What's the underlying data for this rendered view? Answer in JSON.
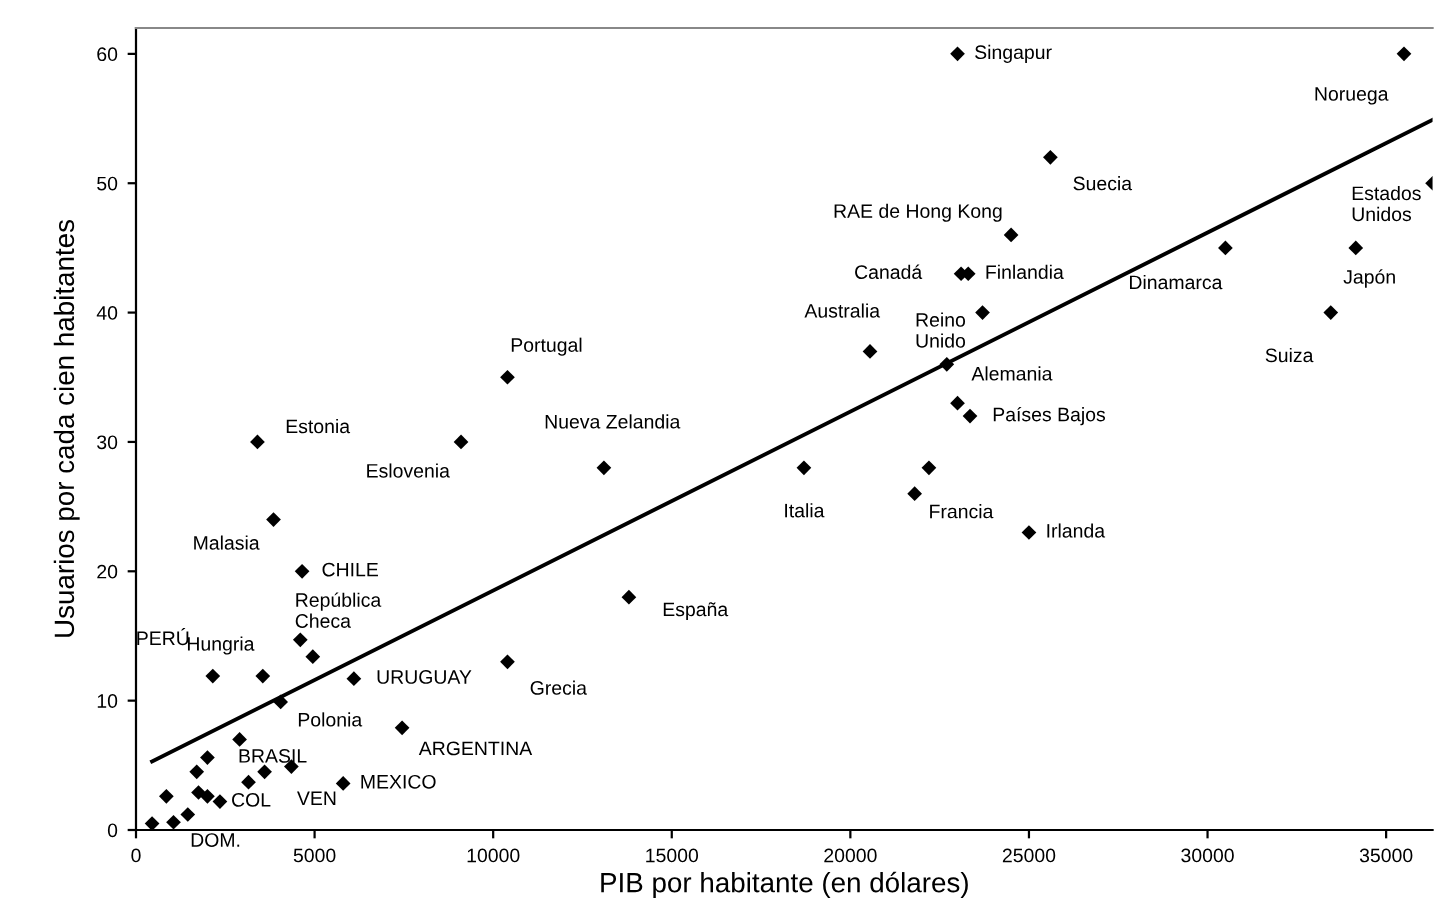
{
  "chart_data": {
    "type": "scatter",
    "xlabel": "PIB por habitante (en dólares)",
    "ylabel": "Usuarios por cada cien habitantes",
    "xlim": [
      0,
      36300
    ],
    "ylim": [
      0,
      62
    ],
    "xticks": [
      0,
      5000,
      10000,
      15000,
      20000,
      25000,
      30000,
      35000
    ],
    "yticks": [
      0,
      10,
      20,
      30,
      40,
      50,
      60
    ],
    "grid": false,
    "legend": false,
    "marker": "diamond",
    "series": [
      {
        "color": "#000000",
        "x": [
          23000,
          35500,
          25600,
          36300,
          24500,
          23100,
          23300,
          30500,
          34150,
          23700,
          33450,
          20550,
          22700,
          23000,
          23350,
          10400,
          3400,
          9100,
          13100,
          18700,
          22200,
          21800,
          25000,
          3850,
          4650,
          13800,
          4600,
          4950,
          10400,
          2150,
          3550,
          6100,
          4050,
          7450,
          2900,
          2000,
          1700,
          3600,
          4350,
          3150,
          5800,
          850,
          1750,
          2000,
          2350,
          1450,
          450,
          1050
        ],
        "values": [
          60,
          60,
          52,
          50,
          46,
          43,
          43,
          45,
          45,
          40,
          40,
          37,
          36,
          33,
          32,
          35,
          30,
          30,
          28,
          28,
          28,
          26,
          23,
          24,
          20,
          18,
          14.7,
          13.4,
          13,
          11.9,
          11.9,
          11.7,
          9.9,
          7.9,
          7,
          5.6,
          4.5,
          4.5,
          4.9,
          3.7,
          3.6,
          2.6,
          2.9,
          2.6,
          2.2,
          1.2,
          0.5,
          0.6
        ]
      },
      {
        "type": "line",
        "color": "#000000",
        "marker": "none",
        "x": [
          450,
          36300
        ],
        "values": [
          5.3,
          54.9
        ]
      }
    ],
    "annotations": [
      {
        "text": "Singapur",
        "x": 23000,
        "y": 60
      },
      {
        "text": "Noruega",
        "x": 35500,
        "y": 60
      },
      {
        "text": "Suecia",
        "x": 25600,
        "y": 52
      },
      {
        "text": "Estados\nUnidos",
        "x": 36300,
        "y": 50
      },
      {
        "text": "RAE de Hong Kong",
        "x": 24500,
        "y": 46
      },
      {
        "text": "Canadá",
        "x": 23100,
        "y": 43
      },
      {
        "text": "Finlandia",
        "x": 23300,
        "y": 43
      },
      {
        "text": "Dinamarca",
        "x": 30500,
        "y": 45
      },
      {
        "text": "Japón",
        "x": 34150,
        "y": 45
      },
      {
        "text": "Reino\nUnido",
        "x": 23700,
        "y": 40
      },
      {
        "text": "Suiza",
        "x": 33450,
        "y": 40
      },
      {
        "text": "Australia",
        "x": 20550,
        "y": 37
      },
      {
        "text": "Alemania",
        "x": 23000,
        "y": 33
      },
      {
        "text": "Países Bajos",
        "x": 23350,
        "y": 32
      },
      {
        "text": "Portugal",
        "x": 10400,
        "y": 35
      },
      {
        "text": "Estonia",
        "x": 3400,
        "y": 30
      },
      {
        "text": "Eslovenia",
        "x": 9100,
        "y": 30
      },
      {
        "text": "Nueva Zelandia",
        "x": 13100,
        "y": 28
      },
      {
        "text": "Italia",
        "x": 18700,
        "y": 28
      },
      {
        "text": "Francia",
        "x": 21800,
        "y": 26
      },
      {
        "text": "Irlanda",
        "x": 25000,
        "y": 23
      },
      {
        "text": "Malasia",
        "x": 3850,
        "y": 24
      },
      {
        "text": "CHILE",
        "x": 4650,
        "y": 20
      },
      {
        "text": "España",
        "x": 13800,
        "y": 18
      },
      {
        "text": "Hungria",
        "x": 3550,
        "y": 11.9
      },
      {
        "text": "República\nCheca",
        "x": 4600,
        "y": 14.7
      },
      {
        "text": "PERÚ",
        "x": 2150,
        "y": 11.9
      },
      {
        "text": "URUGUAY",
        "x": 6100,
        "y": 11.7
      },
      {
        "text": "Grecia",
        "x": 10400,
        "y": 13
      },
      {
        "text": "Polonia",
        "x": 4050,
        "y": 9.9
      },
      {
        "text": "ARGENTINA",
        "x": 7450,
        "y": 7.9
      },
      {
        "text": "BRASIL",
        "x": 2000,
        "y": 5.6
      },
      {
        "text": "VEN",
        "x": 4350,
        "y": 4.9
      },
      {
        "text": "MEXICO",
        "x": 5800,
        "y": 3.6
      },
      {
        "text": "COL",
        "x": 2350,
        "y": 2.2
      },
      {
        "text": "DOM.",
        "x": 1050,
        "y": 0.6
      }
    ]
  }
}
